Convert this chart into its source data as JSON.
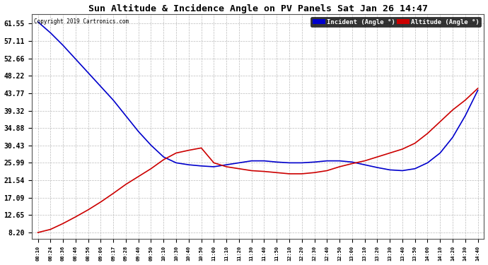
{
  "title": "Sun Altitude & Incidence Angle on PV Panels Sat Jan 26 14:47",
  "copyright": "Copyright 2019 Cartronics.com",
  "legend_incident": "Incident (Angle °)",
  "legend_altitude": "Altitude (Angle °)",
  "incident_color": "#0000cc",
  "altitude_color": "#cc0000",
  "background_color": "#ffffff",
  "grid_color": "#aaaaaa",
  "yticks": [
    8.2,
    12.65,
    17.09,
    21.54,
    25.99,
    30.43,
    34.88,
    39.32,
    43.77,
    48.22,
    52.66,
    57.11,
    61.55
  ],
  "ylim": [
    6.5,
    64.0
  ],
  "x_labels": [
    "08:10",
    "08:24",
    "08:36",
    "08:46",
    "08:56",
    "09:06",
    "09:17",
    "09:28",
    "09:40",
    "09:50",
    "10:10",
    "10:30",
    "10:40",
    "10:50",
    "11:00",
    "11:10",
    "11:20",
    "11:30",
    "11:40",
    "11:50",
    "12:10",
    "12:20",
    "12:30",
    "12:40",
    "12:50",
    "13:00",
    "13:10",
    "13:20",
    "13:30",
    "13:40",
    "13:50",
    "14:00",
    "14:10",
    "14:20",
    "14:30",
    "14:40"
  ],
  "incident_values": [
    62.0,
    59.2,
    56.0,
    52.5,
    49.0,
    45.5,
    42.0,
    38.0,
    34.0,
    30.5,
    27.5,
    26.0,
    25.5,
    25.2,
    25.0,
    25.5,
    26.0,
    26.5,
    26.5,
    26.2,
    26.0,
    26.0,
    26.2,
    26.5,
    26.5,
    26.2,
    25.5,
    24.8,
    24.2,
    24.0,
    24.5,
    26.0,
    28.5,
    32.5,
    38.0,
    44.5
  ],
  "altitude_values": [
    8.2,
    9.0,
    10.5,
    12.2,
    14.0,
    16.0,
    18.2,
    20.5,
    22.5,
    24.5,
    26.8,
    28.5,
    29.2,
    29.8,
    26.0,
    25.0,
    24.5,
    24.0,
    23.8,
    23.5,
    23.2,
    23.2,
    23.5,
    24.0,
    25.0,
    25.8,
    26.5,
    27.5,
    28.5,
    29.5,
    31.0,
    33.5,
    36.5,
    39.5,
    42.0,
    45.0
  ]
}
